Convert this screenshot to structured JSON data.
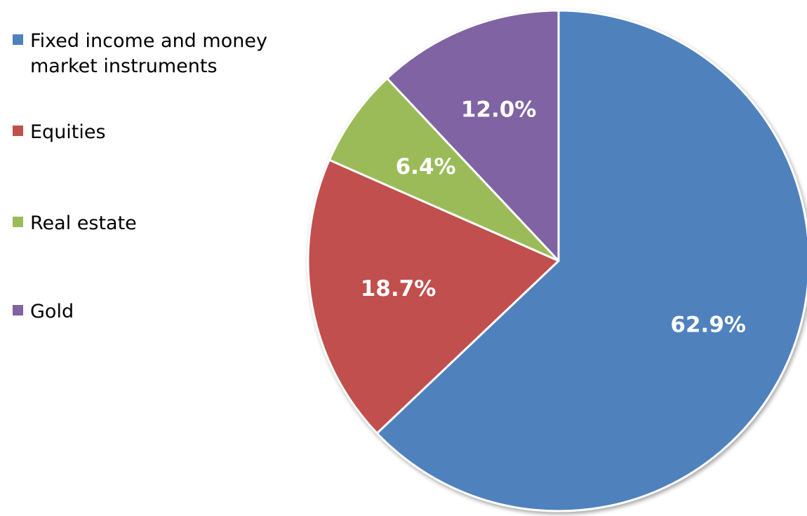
{
  "chart_data": {
    "type": "pie",
    "title": "",
    "categories": [
      "Fixed income and money market instruments",
      "Equities",
      "Real estate",
      "Gold"
    ],
    "values": [
      62.9,
      18.7,
      6.4,
      12.0
    ],
    "labels": [
      "62.9%",
      "18.7%",
      "6.4%",
      "12.0%"
    ],
    "colors": [
      "#4F81BD",
      "#C0504D",
      "#9BBB59",
      "#8064A2"
    ],
    "legend_position": "left",
    "start_angle": "12 o'clock, clockwise"
  }
}
